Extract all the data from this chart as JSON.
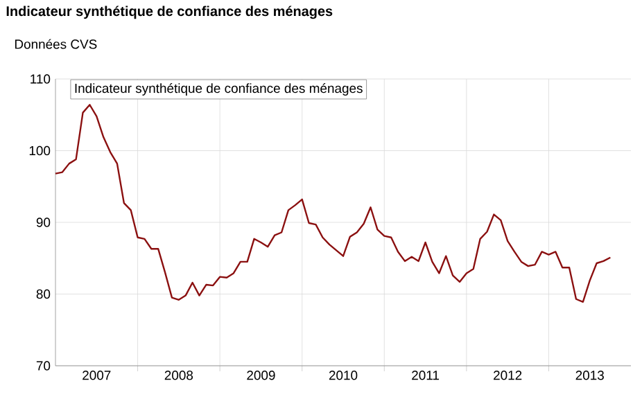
{
  "chart_data": {
    "type": "line",
    "title": "Indicateur synthétique de confiance des ménages",
    "ylabel": "Données CVS",
    "x": [
      "2007-01",
      "2007-02",
      "2007-03",
      "2007-04",
      "2007-05",
      "2007-06",
      "2007-07",
      "2007-08",
      "2007-09",
      "2007-10",
      "2007-11",
      "2007-12",
      "2008-01",
      "2008-02",
      "2008-03",
      "2008-04",
      "2008-05",
      "2008-06",
      "2008-07",
      "2008-08",
      "2008-09",
      "2008-10",
      "2008-11",
      "2008-12",
      "2009-01",
      "2009-02",
      "2009-03",
      "2009-04",
      "2009-05",
      "2009-06",
      "2009-07",
      "2009-08",
      "2009-09",
      "2009-10",
      "2009-11",
      "2009-12",
      "2010-01",
      "2010-02",
      "2010-03",
      "2010-04",
      "2010-05",
      "2010-06",
      "2010-07",
      "2010-08",
      "2010-09",
      "2010-10",
      "2010-11",
      "2010-12",
      "2011-01",
      "2011-02",
      "2011-03",
      "2011-04",
      "2011-05",
      "2011-06",
      "2011-07",
      "2011-08",
      "2011-09",
      "2011-10",
      "2011-11",
      "2011-12",
      "2012-01",
      "2012-02",
      "2012-03",
      "2012-04",
      "2012-05",
      "2012-06",
      "2012-07",
      "2012-08",
      "2012-09",
      "2012-10",
      "2012-11",
      "2012-12",
      "2013-01",
      "2013-02",
      "2013-03",
      "2013-04",
      "2013-05",
      "2013-06",
      "2013-07",
      "2013-08",
      "2013-09",
      "2013-10"
    ],
    "series": [
      {
        "name": "Indicateur synthétique de confiance des ménages",
        "color": "#8b1010",
        "values": [
          96.8,
          97.0,
          98.2,
          98.8,
          105.3,
          106.4,
          104.8,
          101.9,
          99.8,
          98.2,
          92.7,
          91.7,
          87.9,
          87.7,
          86.3,
          86.3,
          83.0,
          79.5,
          79.2,
          79.8,
          81.6,
          79.8,
          81.3,
          81.2,
          82.4,
          82.3,
          82.9,
          84.5,
          84.5,
          87.7,
          87.2,
          86.6,
          88.2,
          88.6,
          91.7,
          92.4,
          93.2,
          89.9,
          89.7,
          87.9,
          86.9,
          86.1,
          85.3,
          88.0,
          88.6,
          89.8,
          92.1,
          89.0,
          88.1,
          87.9,
          85.9,
          84.6,
          85.2,
          84.6,
          87.2,
          84.5,
          82.9,
          85.3,
          82.6,
          81.7,
          82.9,
          83.5,
          87.7,
          88.7,
          91.1,
          90.3,
          87.4,
          85.9,
          84.5,
          83.9,
          84.1,
          85.9,
          85.5,
          85.9,
          83.7,
          83.7,
          79.3,
          78.9,
          81.9,
          84.3,
          84.6,
          85.1
        ]
      }
    ],
    "xlim": [
      "2007-01",
      "2014-01"
    ],
    "xticks": [
      {
        "value": "2007-07",
        "label": "2007"
      },
      {
        "value": "2008-01",
        "label": null
      },
      {
        "value": "2008-07",
        "label": "2008"
      },
      {
        "value": "2009-01",
        "label": null
      },
      {
        "value": "2009-07",
        "label": "2009"
      },
      {
        "value": "2010-01",
        "label": null
      },
      {
        "value": "2010-07",
        "label": "2010"
      },
      {
        "value": "2011-01",
        "label": null
      },
      {
        "value": "2011-07",
        "label": "2011"
      },
      {
        "value": "2012-01",
        "label": null
      },
      {
        "value": "2012-07",
        "label": "2012"
      },
      {
        "value": "2013-01",
        "label": null
      },
      {
        "value": "2013-07",
        "label": "2013"
      }
    ],
    "ylim": [
      70,
      110
    ],
    "yticks": [
      70,
      80,
      90,
      100,
      110
    ],
    "grid": true
  }
}
